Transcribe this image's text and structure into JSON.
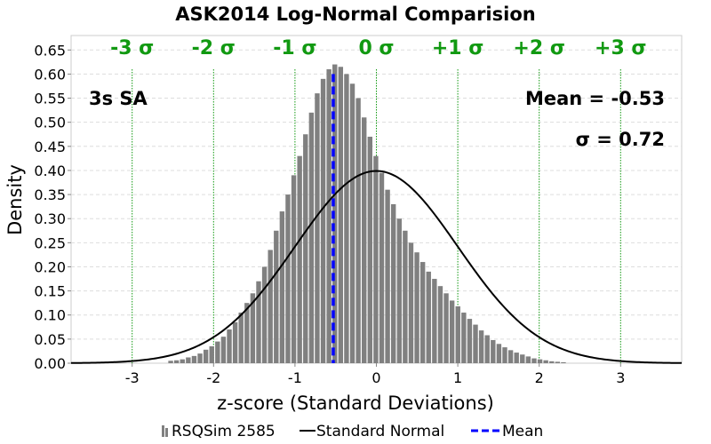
{
  "chart_data": {
    "type": "bar",
    "title": "ASK2014 Log-Normal Comparision",
    "xlabel": "z-score (Standard Deviations)",
    "ylabel": "Density",
    "xlim": [
      -3.75,
      3.75
    ],
    "ylim": [
      0,
      0.68
    ],
    "xticks": [
      "-3",
      "-2",
      "-1",
      "0",
      "1",
      "2",
      "3"
    ],
    "yticks": [
      "0.00",
      "0.05",
      "0.10",
      "0.15",
      "0.20",
      "0.25",
      "0.30",
      "0.35",
      "0.40",
      "0.45",
      "0.50",
      "0.55",
      "0.60",
      "0.65"
    ],
    "grid": true,
    "sigma_lines": [
      {
        "value": -3,
        "label": "-3 σ"
      },
      {
        "value": -2,
        "label": "-2 σ"
      },
      {
        "value": -1,
        "label": "-1 σ"
      },
      {
        "value": 0,
        "label": "0 σ"
      },
      {
        "value": 1,
        "label": "+1 σ"
      },
      {
        "value": 2,
        "label": "+2 σ"
      },
      {
        "value": 3,
        "label": "+3 σ"
      }
    ],
    "annotations": {
      "period": "3s SA",
      "mean": "Mean = -0.53",
      "sigma": "σ = 0.72"
    },
    "histogram": {
      "name": "RSQSim 2585",
      "bin_width": 0.072,
      "color": "#808080",
      "bins": [
        {
          "x": -2.52,
          "y": 0.005
        },
        {
          "x": -2.448,
          "y": 0.006
        },
        {
          "x": -2.376,
          "y": 0.008
        },
        {
          "x": -2.304,
          "y": 0.012
        },
        {
          "x": -2.232,
          "y": 0.015
        },
        {
          "x": -2.16,
          "y": 0.02
        },
        {
          "x": -2.088,
          "y": 0.028
        },
        {
          "x": -2.016,
          "y": 0.035
        },
        {
          "x": -1.944,
          "y": 0.045
        },
        {
          "x": -1.872,
          "y": 0.055
        },
        {
          "x": -1.8,
          "y": 0.07
        },
        {
          "x": -1.728,
          "y": 0.085
        },
        {
          "x": -1.656,
          "y": 0.105
        },
        {
          "x": -1.584,
          "y": 0.125
        },
        {
          "x": -1.512,
          "y": 0.145
        },
        {
          "x": -1.44,
          "y": 0.17
        },
        {
          "x": -1.368,
          "y": 0.2
        },
        {
          "x": -1.296,
          "y": 0.235
        },
        {
          "x": -1.224,
          "y": 0.275
        },
        {
          "x": -1.152,
          "y": 0.315
        },
        {
          "x": -1.08,
          "y": 0.35
        },
        {
          "x": -1.008,
          "y": 0.39
        },
        {
          "x": -0.936,
          "y": 0.43
        },
        {
          "x": -0.864,
          "y": 0.475
        },
        {
          "x": -0.792,
          "y": 0.52
        },
        {
          "x": -0.72,
          "y": 0.56
        },
        {
          "x": -0.648,
          "y": 0.59
        },
        {
          "x": -0.576,
          "y": 0.61
        },
        {
          "x": -0.504,
          "y": 0.62
        },
        {
          "x": -0.432,
          "y": 0.615
        },
        {
          "x": -0.36,
          "y": 0.6
        },
        {
          "x": -0.288,
          "y": 0.58
        },
        {
          "x": -0.216,
          "y": 0.55
        },
        {
          "x": -0.144,
          "y": 0.51
        },
        {
          "x": -0.072,
          "y": 0.47
        },
        {
          "x": 0.0,
          "y": 0.43
        },
        {
          "x": 0.072,
          "y": 0.395
        },
        {
          "x": 0.144,
          "y": 0.36
        },
        {
          "x": 0.216,
          "y": 0.33
        },
        {
          "x": 0.288,
          "y": 0.3
        },
        {
          "x": 0.36,
          "y": 0.275
        },
        {
          "x": 0.432,
          "y": 0.25
        },
        {
          "x": 0.504,
          "y": 0.23
        },
        {
          "x": 0.576,
          "y": 0.21
        },
        {
          "x": 0.648,
          "y": 0.19
        },
        {
          "x": 0.72,
          "y": 0.175
        },
        {
          "x": 0.792,
          "y": 0.16
        },
        {
          "x": 0.864,
          "y": 0.145
        },
        {
          "x": 0.936,
          "y": 0.13
        },
        {
          "x": 1.008,
          "y": 0.118
        },
        {
          "x": 1.08,
          "y": 0.105
        },
        {
          "x": 1.152,
          "y": 0.092
        },
        {
          "x": 1.224,
          "y": 0.08
        },
        {
          "x": 1.296,
          "y": 0.068
        },
        {
          "x": 1.368,
          "y": 0.058
        },
        {
          "x": 1.44,
          "y": 0.048
        },
        {
          "x": 1.512,
          "y": 0.04
        },
        {
          "x": 1.584,
          "y": 0.033
        },
        {
          "x": 1.656,
          "y": 0.027
        },
        {
          "x": 1.728,
          "y": 0.022
        },
        {
          "x": 1.8,
          "y": 0.018
        },
        {
          "x": 1.872,
          "y": 0.014
        },
        {
          "x": 1.944,
          "y": 0.01
        },
        {
          "x": 2.016,
          "y": 0.008
        },
        {
          "x": 2.088,
          "y": 0.006
        },
        {
          "x": 2.16,
          "y": 0.004
        },
        {
          "x": 2.232,
          "y": 0.003
        },
        {
          "x": 2.304,
          "y": 0.002
        }
      ]
    },
    "normal_curve": {
      "name": "Standard Normal",
      "mu": 0,
      "sigma": 1,
      "color": "#000000"
    },
    "mean_line": {
      "name": "Mean",
      "value": -0.53,
      "color": "#0000ff"
    },
    "legend_position": "bottom"
  }
}
